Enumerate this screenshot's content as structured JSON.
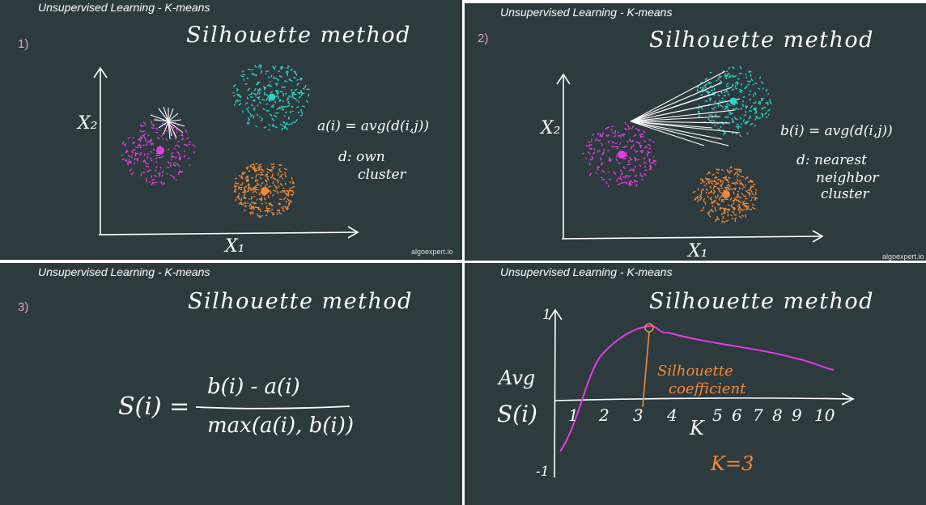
{
  "panel1": {
    "header": "Unsupervised Learning - K-means",
    "number": "1)",
    "title": "Silhouette method",
    "y_label": "X₂",
    "x_label": "X₁",
    "formula": "a(i) = avg(d(i,j))",
    "note_line1": "d: own",
    "note_line2": "cluster",
    "watermark": "algoexpert.io"
  },
  "panel2": {
    "header": "Unsupervised Learning - K-means",
    "number": "2)",
    "title": "Silhouette method",
    "y_label": "X₂",
    "x_label": "X₁",
    "formula": "b(i) = avg(d(i,j))",
    "note_line1": "d: nearest",
    "note_line2": "neighbor",
    "note_line3": "cluster",
    "watermark": "algoexpert.io"
  },
  "panel3": {
    "header": "Unsupervised Learning - K-means",
    "number": "3)",
    "title": "Silhouette method",
    "lhs": "S(i) =",
    "numerator": "b(i) - a(i)",
    "denominator": "max(a(i), b(i))"
  },
  "panel4": {
    "header": "Unsupervised Learning - K-means",
    "title": "Silhouette method",
    "y_top": "1",
    "y_bottom": "-1",
    "y_label1": "Avg",
    "y_label2": "S(i)",
    "x_ticks": [
      "1",
      "2",
      "3",
      "4",
      "5",
      "6",
      "7",
      "8",
      "9",
      "10"
    ],
    "x_label": "K",
    "annotation_line1": "Silhouette",
    "annotation_line2": "coefficient",
    "result": "K=3"
  },
  "colors": {
    "background": "#2d3a3e",
    "magenta": "#e13ee0",
    "cyan": "#2ed5c5",
    "orange": "#f08a3a",
    "pink_number": "#e8a0c0"
  }
}
